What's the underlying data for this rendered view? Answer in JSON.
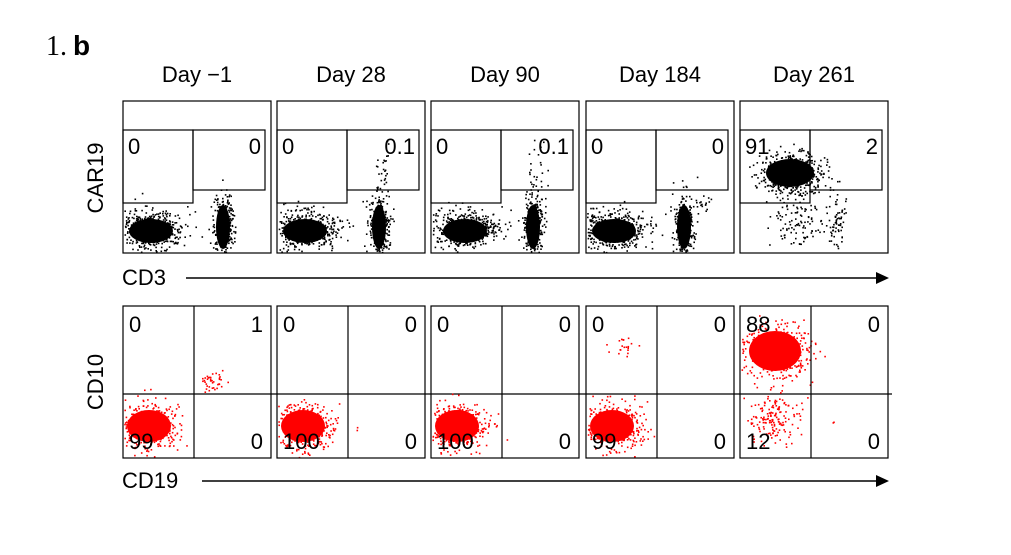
{
  "figure": {
    "list_number": "1.",
    "panel_label": "b",
    "colors": {
      "car19_dots": "#000000",
      "cd10_dots": "#ff0000",
      "gate": "#000000"
    }
  },
  "chart_data": [
    {
      "type": "scatter",
      "title": "",
      "xlabel": "CD3",
      "ylabel": "CAR19",
      "row": "top",
      "columns": [
        "Day −1",
        "Day 28",
        "Day 90",
        "Day 184",
        "Day 261"
      ],
      "gate_values": [
        {
          "day": "Day −1",
          "left": "0",
          "right": "0"
        },
        {
          "day": "Day 28",
          "left": "0",
          "right": "0.1"
        },
        {
          "day": "Day 90",
          "left": "0",
          "right": "0.1"
        },
        {
          "day": "Day 184",
          "left": "0",
          "right": "0"
        },
        {
          "day": "Day 261",
          "left": "91",
          "right": "2"
        }
      ],
      "point_color": "#000000"
    },
    {
      "type": "scatter",
      "title": "",
      "xlabel": "CD19",
      "ylabel": "CD10",
      "row": "bottom",
      "columns": [
        "Day −1",
        "Day 28",
        "Day 90",
        "Day 184",
        "Day 261"
      ],
      "quadrant_values": [
        {
          "day": "Day −1",
          "UL": "0",
          "UR": "1",
          "LL": "99",
          "LR": "0"
        },
        {
          "day": "Day 28",
          "UL": "0",
          "UR": "0",
          "LL": "100",
          "LR": "0"
        },
        {
          "day": "Day 90",
          "UL": "0",
          "UR": "0",
          "LL": "100",
          "LR": "0"
        },
        {
          "day": "Day 184",
          "UL": "0",
          "UR": "0",
          "LL": "99",
          "LR": "0"
        },
        {
          "day": "Day 261",
          "UL": "88",
          "UR": "0",
          "LL": "12",
          "LR": "0"
        }
      ],
      "point_color": "#ff0000"
    }
  ]
}
